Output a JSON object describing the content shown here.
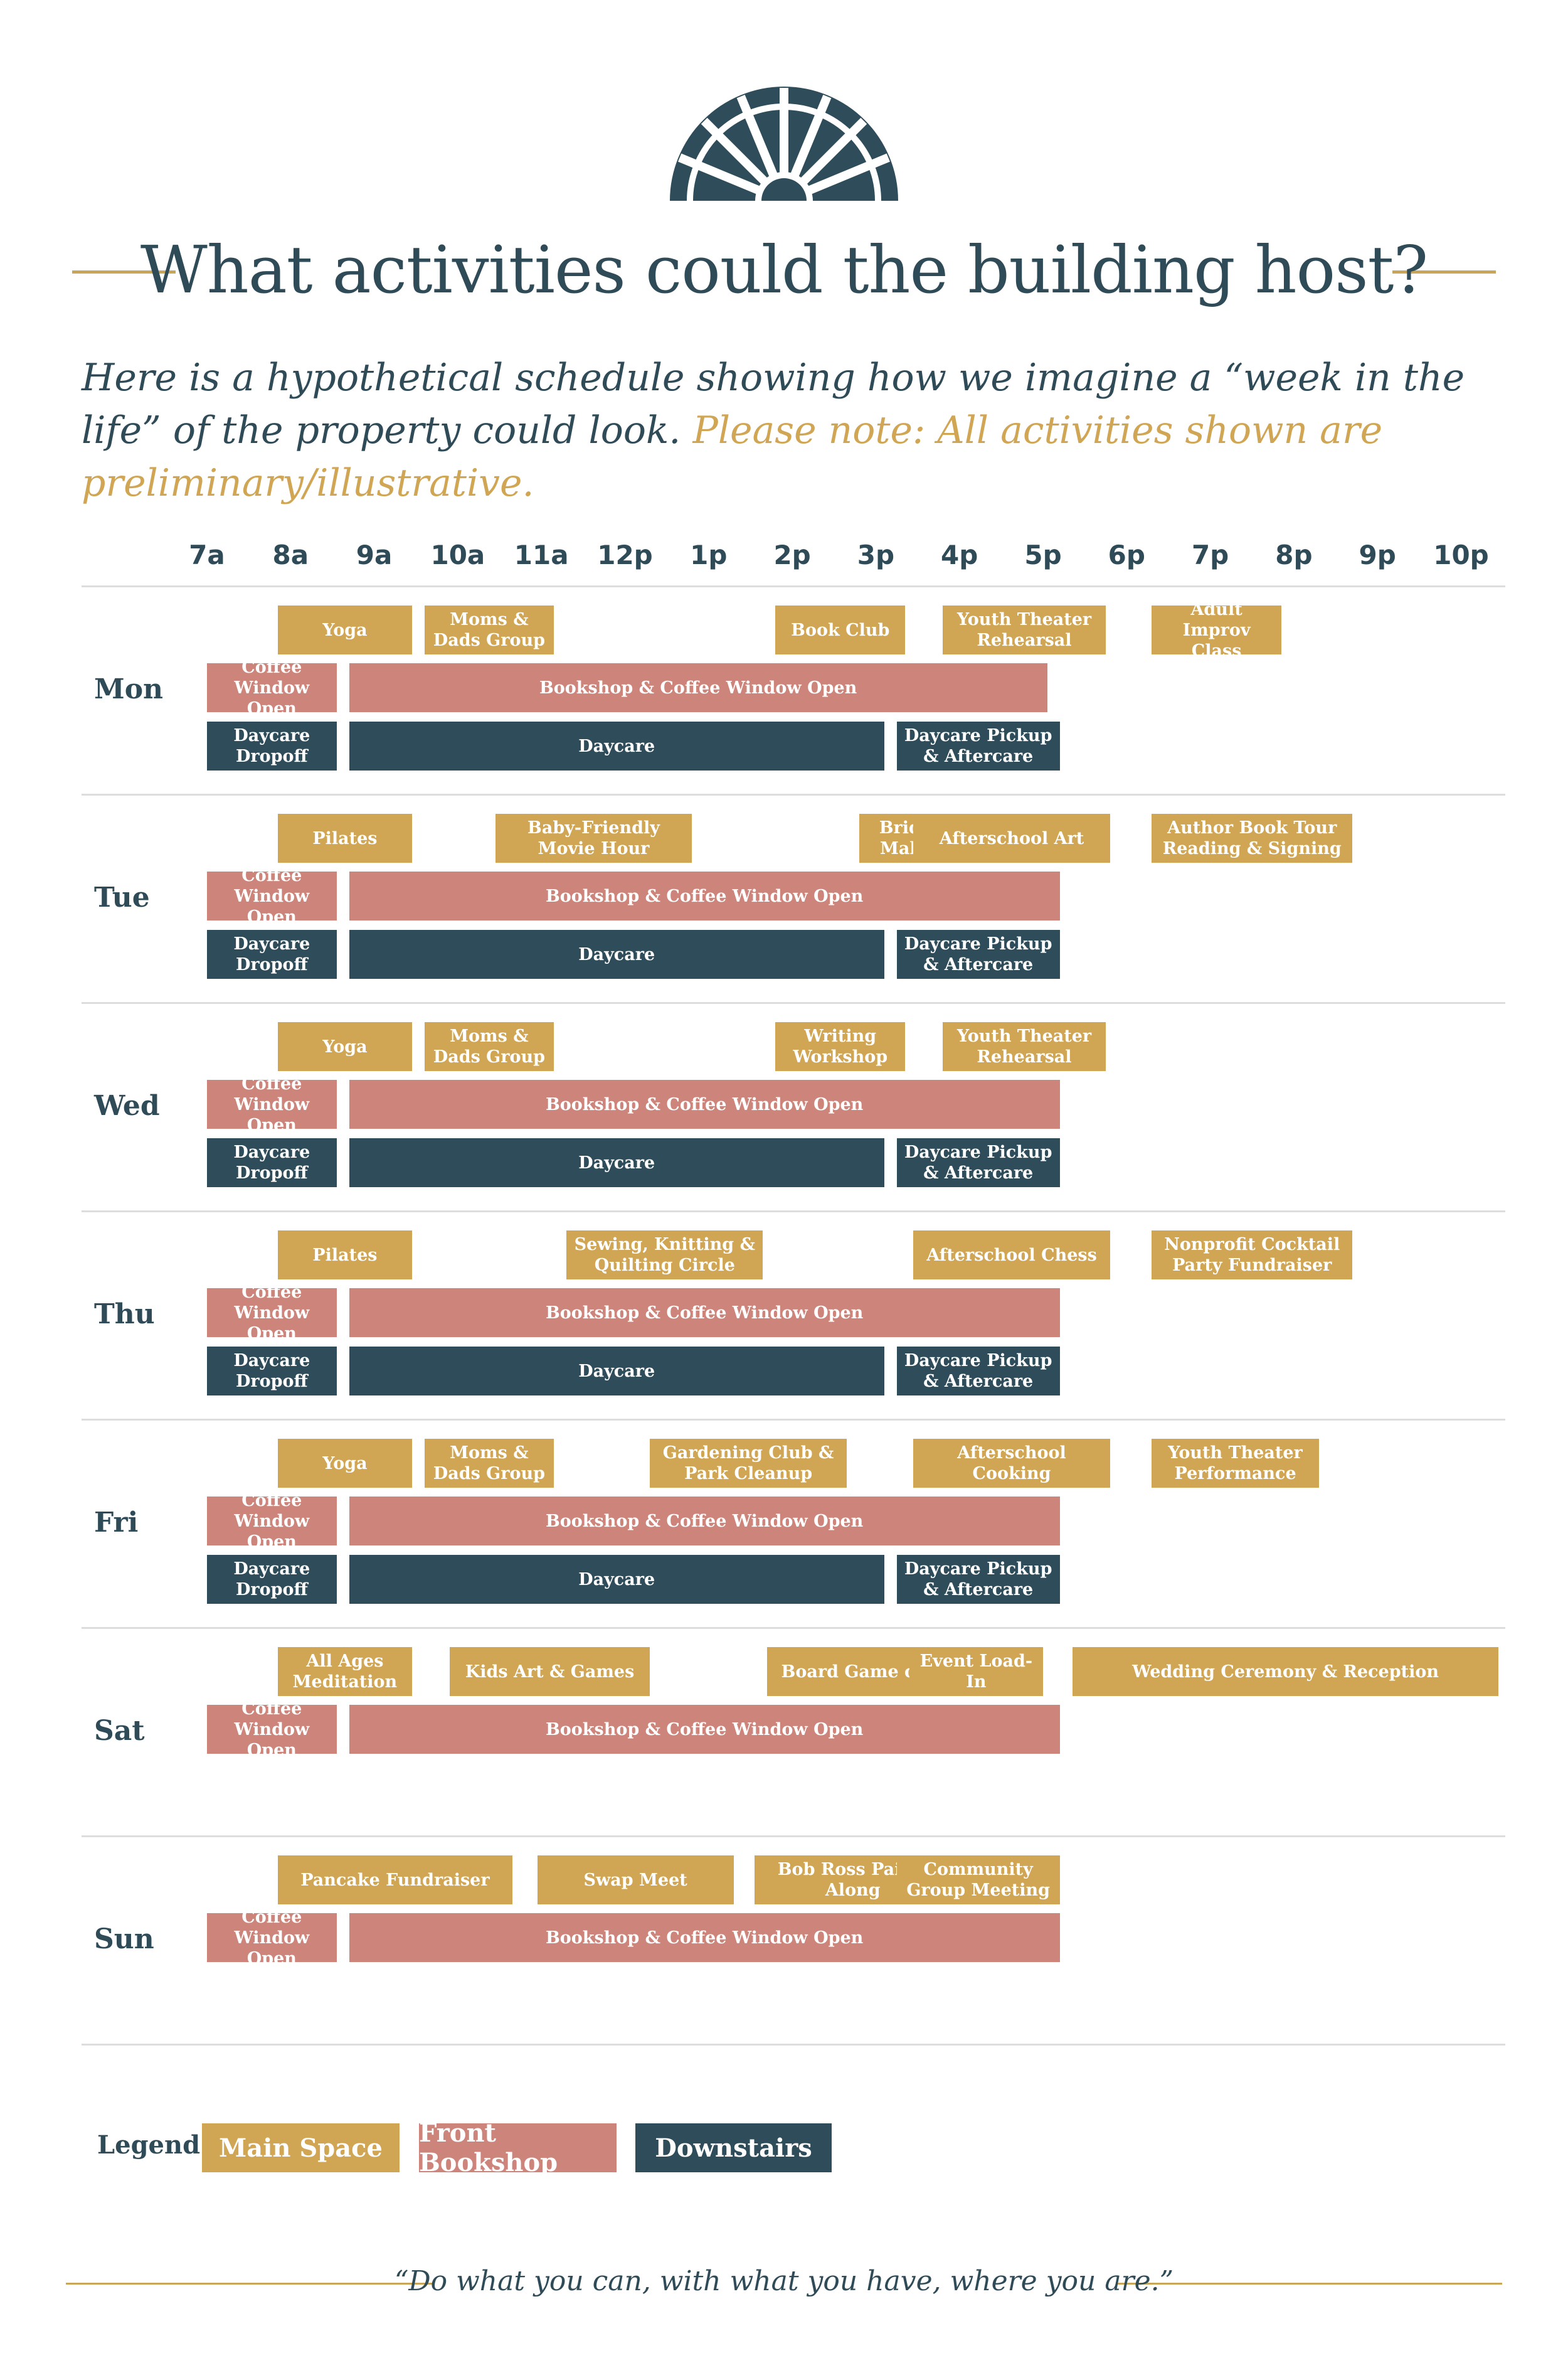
{
  "title": "What activities could the building host?",
  "intro": {
    "text": "Here is a hypothetical schedule showing how we imagine a “week in the life” of the property could look.",
    "note": "Please note: All activities shown are preliminary/illustrative."
  },
  "colors": {
    "main_space": "#d0a553",
    "front_bookshop": "#cd847a",
    "downstairs": "#2e4c5a",
    "text": "#304b58",
    "rule": "#c9a557"
  },
  "logo": {
    "icon": "fanlight-window-icon"
  },
  "time_labels": [
    "7a",
    "8a",
    "9a",
    "10a",
    "11a",
    "12p",
    "1p",
    "2p",
    "3p",
    "4p",
    "5p",
    "6p",
    "7p",
    "8p",
    "9p",
    "10p"
  ],
  "schedule": [
    {
      "day": "Mon",
      "events": [
        {
          "label": "Yoga",
          "start": 7.85,
          "end": 9.45,
          "space": "main",
          "row": 0
        },
        {
          "label": "Moms & Dads Group",
          "start": 9.6,
          "end": 11.15,
          "space": "main",
          "row": 0
        },
        {
          "label": "Book Club",
          "start": 13.8,
          "end": 15.35,
          "space": "main",
          "row": 0
        },
        {
          "label": "Youth Theater Rehearsal",
          "start": 15.8,
          "end": 17.75,
          "space": "main",
          "row": 0
        },
        {
          "label": "Adult Improv Class",
          "start": 18.3,
          "end": 19.85,
          "space": "main",
          "row": 0
        },
        {
          "label": "Coffee Window Open",
          "start": 7.0,
          "end": 8.55,
          "space": "front",
          "row": 1
        },
        {
          "label": "Bookshop & Coffee Window Open",
          "start": 8.7,
          "end": 17.05,
          "space": "front",
          "row": 1
        },
        {
          "label": "Daycare Dropoff",
          "start": 7.0,
          "end": 8.55,
          "space": "down",
          "row": 2
        },
        {
          "label": "Daycare",
          "start": 8.7,
          "end": 15.1,
          "space": "down",
          "row": 2
        },
        {
          "label": "Daycare Pickup & Aftercare",
          "start": 15.25,
          "end": 17.2,
          "space": "down",
          "row": 2
        }
      ]
    },
    {
      "day": "Tue",
      "events": [
        {
          "label": "Pilates",
          "start": 7.85,
          "end": 9.45,
          "space": "main",
          "row": 0
        },
        {
          "label": "Baby-Friendly Movie Hour",
          "start": 10.45,
          "end": 12.8,
          "space": "main",
          "row": 0
        },
        {
          "label": "Bridge & Mahjong",
          "start": 14.8,
          "end": 16.3,
          "space": "main",
          "row": 0
        },
        {
          "label": "Afterschool Art",
          "start": 15.45,
          "end": 17.8,
          "space": "main",
          "row": 0
        },
        {
          "label": "Author Book Tour Reading & Signing",
          "start": 18.3,
          "end": 20.7,
          "space": "main",
          "row": 0
        },
        {
          "label": "Coffee Window Open",
          "start": 7.0,
          "end": 8.55,
          "space": "front",
          "row": 1
        },
        {
          "label": "Bookshop & Coffee Window Open",
          "start": 8.7,
          "end": 17.2,
          "space": "front",
          "row": 1
        },
        {
          "label": "Daycare Dropoff",
          "start": 7.0,
          "end": 8.55,
          "space": "down",
          "row": 2
        },
        {
          "label": "Daycare",
          "start": 8.7,
          "end": 15.1,
          "space": "down",
          "row": 2
        },
        {
          "label": "Daycare Pickup & Aftercare",
          "start": 15.25,
          "end": 17.2,
          "space": "down",
          "row": 2
        }
      ]
    },
    {
      "day": "Wed",
      "events": [
        {
          "label": "Yoga",
          "start": 7.85,
          "end": 9.45,
          "space": "main",
          "row": 0
        },
        {
          "label": "Moms & Dads Group",
          "start": 9.6,
          "end": 11.15,
          "space": "main",
          "row": 0
        },
        {
          "label": "Writing Workshop",
          "start": 13.8,
          "end": 15.35,
          "space": "main",
          "row": 0
        },
        {
          "label": "Youth Theater Rehearsal",
          "start": 15.8,
          "end": 17.75,
          "space": "main",
          "row": 0
        },
        {
          "label": "Coffee Window Open",
          "start": 7.0,
          "end": 8.55,
          "space": "front",
          "row": 1
        },
        {
          "label": "Bookshop & Coffee Window Open",
          "start": 8.7,
          "end": 17.2,
          "space": "front",
          "row": 1
        },
        {
          "label": "Daycare Dropoff",
          "start": 7.0,
          "end": 8.55,
          "space": "down",
          "row": 2
        },
        {
          "label": "Daycare",
          "start": 8.7,
          "end": 15.1,
          "space": "down",
          "row": 2
        },
        {
          "label": "Daycare Pickup & Aftercare",
          "start": 15.25,
          "end": 17.2,
          "space": "down",
          "row": 2
        }
      ]
    },
    {
      "day": "Thu",
      "events": [
        {
          "label": "Pilates",
          "start": 7.85,
          "end": 9.45,
          "space": "main",
          "row": 0
        },
        {
          "label": "Sewing, Knitting & Quilting Circle",
          "start": 11.3,
          "end": 13.65,
          "space": "main",
          "row": 0
        },
        {
          "label": "Afterschool Chess",
          "start": 15.45,
          "end": 17.8,
          "space": "main",
          "row": 0
        },
        {
          "label": "Nonprofit Cocktail Party Fundraiser",
          "start": 18.3,
          "end": 20.7,
          "space": "main",
          "row": 0
        },
        {
          "label": "Coffee Window Open",
          "start": 7.0,
          "end": 8.55,
          "space": "front",
          "row": 1
        },
        {
          "label": "Bookshop & Coffee Window Open",
          "start": 8.7,
          "end": 17.2,
          "space": "front",
          "row": 1
        },
        {
          "label": "Daycare Dropoff",
          "start": 7.0,
          "end": 8.55,
          "space": "down",
          "row": 2
        },
        {
          "label": "Daycare",
          "start": 8.7,
          "end": 15.1,
          "space": "down",
          "row": 2
        },
        {
          "label": "Daycare Pickup & Aftercare",
          "start": 15.25,
          "end": 17.2,
          "space": "down",
          "row": 2
        }
      ]
    },
    {
      "day": "Fri",
      "events": [
        {
          "label": "Yoga",
          "start": 7.85,
          "end": 9.45,
          "space": "main",
          "row": 0
        },
        {
          "label": "Moms & Dads Group",
          "start": 9.6,
          "end": 11.15,
          "space": "main",
          "row": 0
        },
        {
          "label": "Gardening Club & Park Cleanup",
          "start": 12.3,
          "end": 14.65,
          "space": "main",
          "row": 0
        },
        {
          "label": "Afterschool Cooking",
          "start": 15.45,
          "end": 17.8,
          "space": "main",
          "row": 0
        },
        {
          "label": "Youth Theater Performance",
          "start": 18.3,
          "end": 20.3,
          "space": "main",
          "row": 0
        },
        {
          "label": "Coffee Window Open",
          "start": 7.0,
          "end": 8.55,
          "space": "front",
          "row": 1
        },
        {
          "label": "Bookshop & Coffee Window Open",
          "start": 8.7,
          "end": 17.2,
          "space": "front",
          "row": 1
        },
        {
          "label": "Daycare Dropoff",
          "start": 7.0,
          "end": 8.55,
          "space": "down",
          "row": 2
        },
        {
          "label": "Daycare",
          "start": 8.7,
          "end": 15.1,
          "space": "down",
          "row": 2
        },
        {
          "label": "Daycare Pickup & Aftercare",
          "start": 15.25,
          "end": 17.2,
          "space": "down",
          "row": 2
        }
      ]
    },
    {
      "day": "Sat",
      "events": [
        {
          "label": "All Ages Meditation",
          "start": 7.85,
          "end": 9.45,
          "space": "main",
          "row": 0
        },
        {
          "label": "Kids Art & Games",
          "start": 9.9,
          "end": 12.3,
          "space": "main",
          "row": 0
        },
        {
          "label": "Board Game club",
          "start": 13.7,
          "end": 16.0,
          "space": "main",
          "row": 0
        },
        {
          "label": "Event Load-In",
          "start": 15.4,
          "end": 17.0,
          "space": "main",
          "row": 0
        },
        {
          "label": "Wedding Ceremony & Reception",
          "start": 17.35,
          "end": 22.45,
          "space": "main",
          "row": 0
        },
        {
          "label": "Coffee Window Open",
          "start": 7.0,
          "end": 8.55,
          "space": "front",
          "row": 1
        },
        {
          "label": "Bookshop & Coffee Window Open",
          "start": 8.7,
          "end": 17.2,
          "space": "front",
          "row": 1
        }
      ]
    },
    {
      "day": "Sun",
      "events": [
        {
          "label": "Pancake Fundraiser",
          "start": 7.85,
          "end": 10.65,
          "space": "main",
          "row": 0
        },
        {
          "label": "Swap Meet",
          "start": 10.95,
          "end": 13.3,
          "space": "main",
          "row": 0
        },
        {
          "label": "Bob Ross Paint-Along",
          "start": 13.55,
          "end": 15.9,
          "space": "main",
          "row": 0
        },
        {
          "label": "Community Group Meeting",
          "start": 15.25,
          "end": 17.2,
          "space": "main",
          "row": 0
        },
        {
          "label": "Coffee Window Open",
          "start": 7.0,
          "end": 8.55,
          "space": "front",
          "row": 1
        },
        {
          "label": "Bookshop & Coffee Window Open",
          "start": 8.7,
          "end": 17.2,
          "space": "front",
          "row": 1
        }
      ]
    }
  ],
  "legend": {
    "label": "Legend:",
    "items": [
      {
        "label": "Main Space",
        "space": "main"
      },
      {
        "label": "Front Bookshop",
        "space": "front"
      },
      {
        "label": "Downstairs",
        "space": "down"
      }
    ]
  },
  "quote": "“Do what you can, with what you have, where you are.”"
}
